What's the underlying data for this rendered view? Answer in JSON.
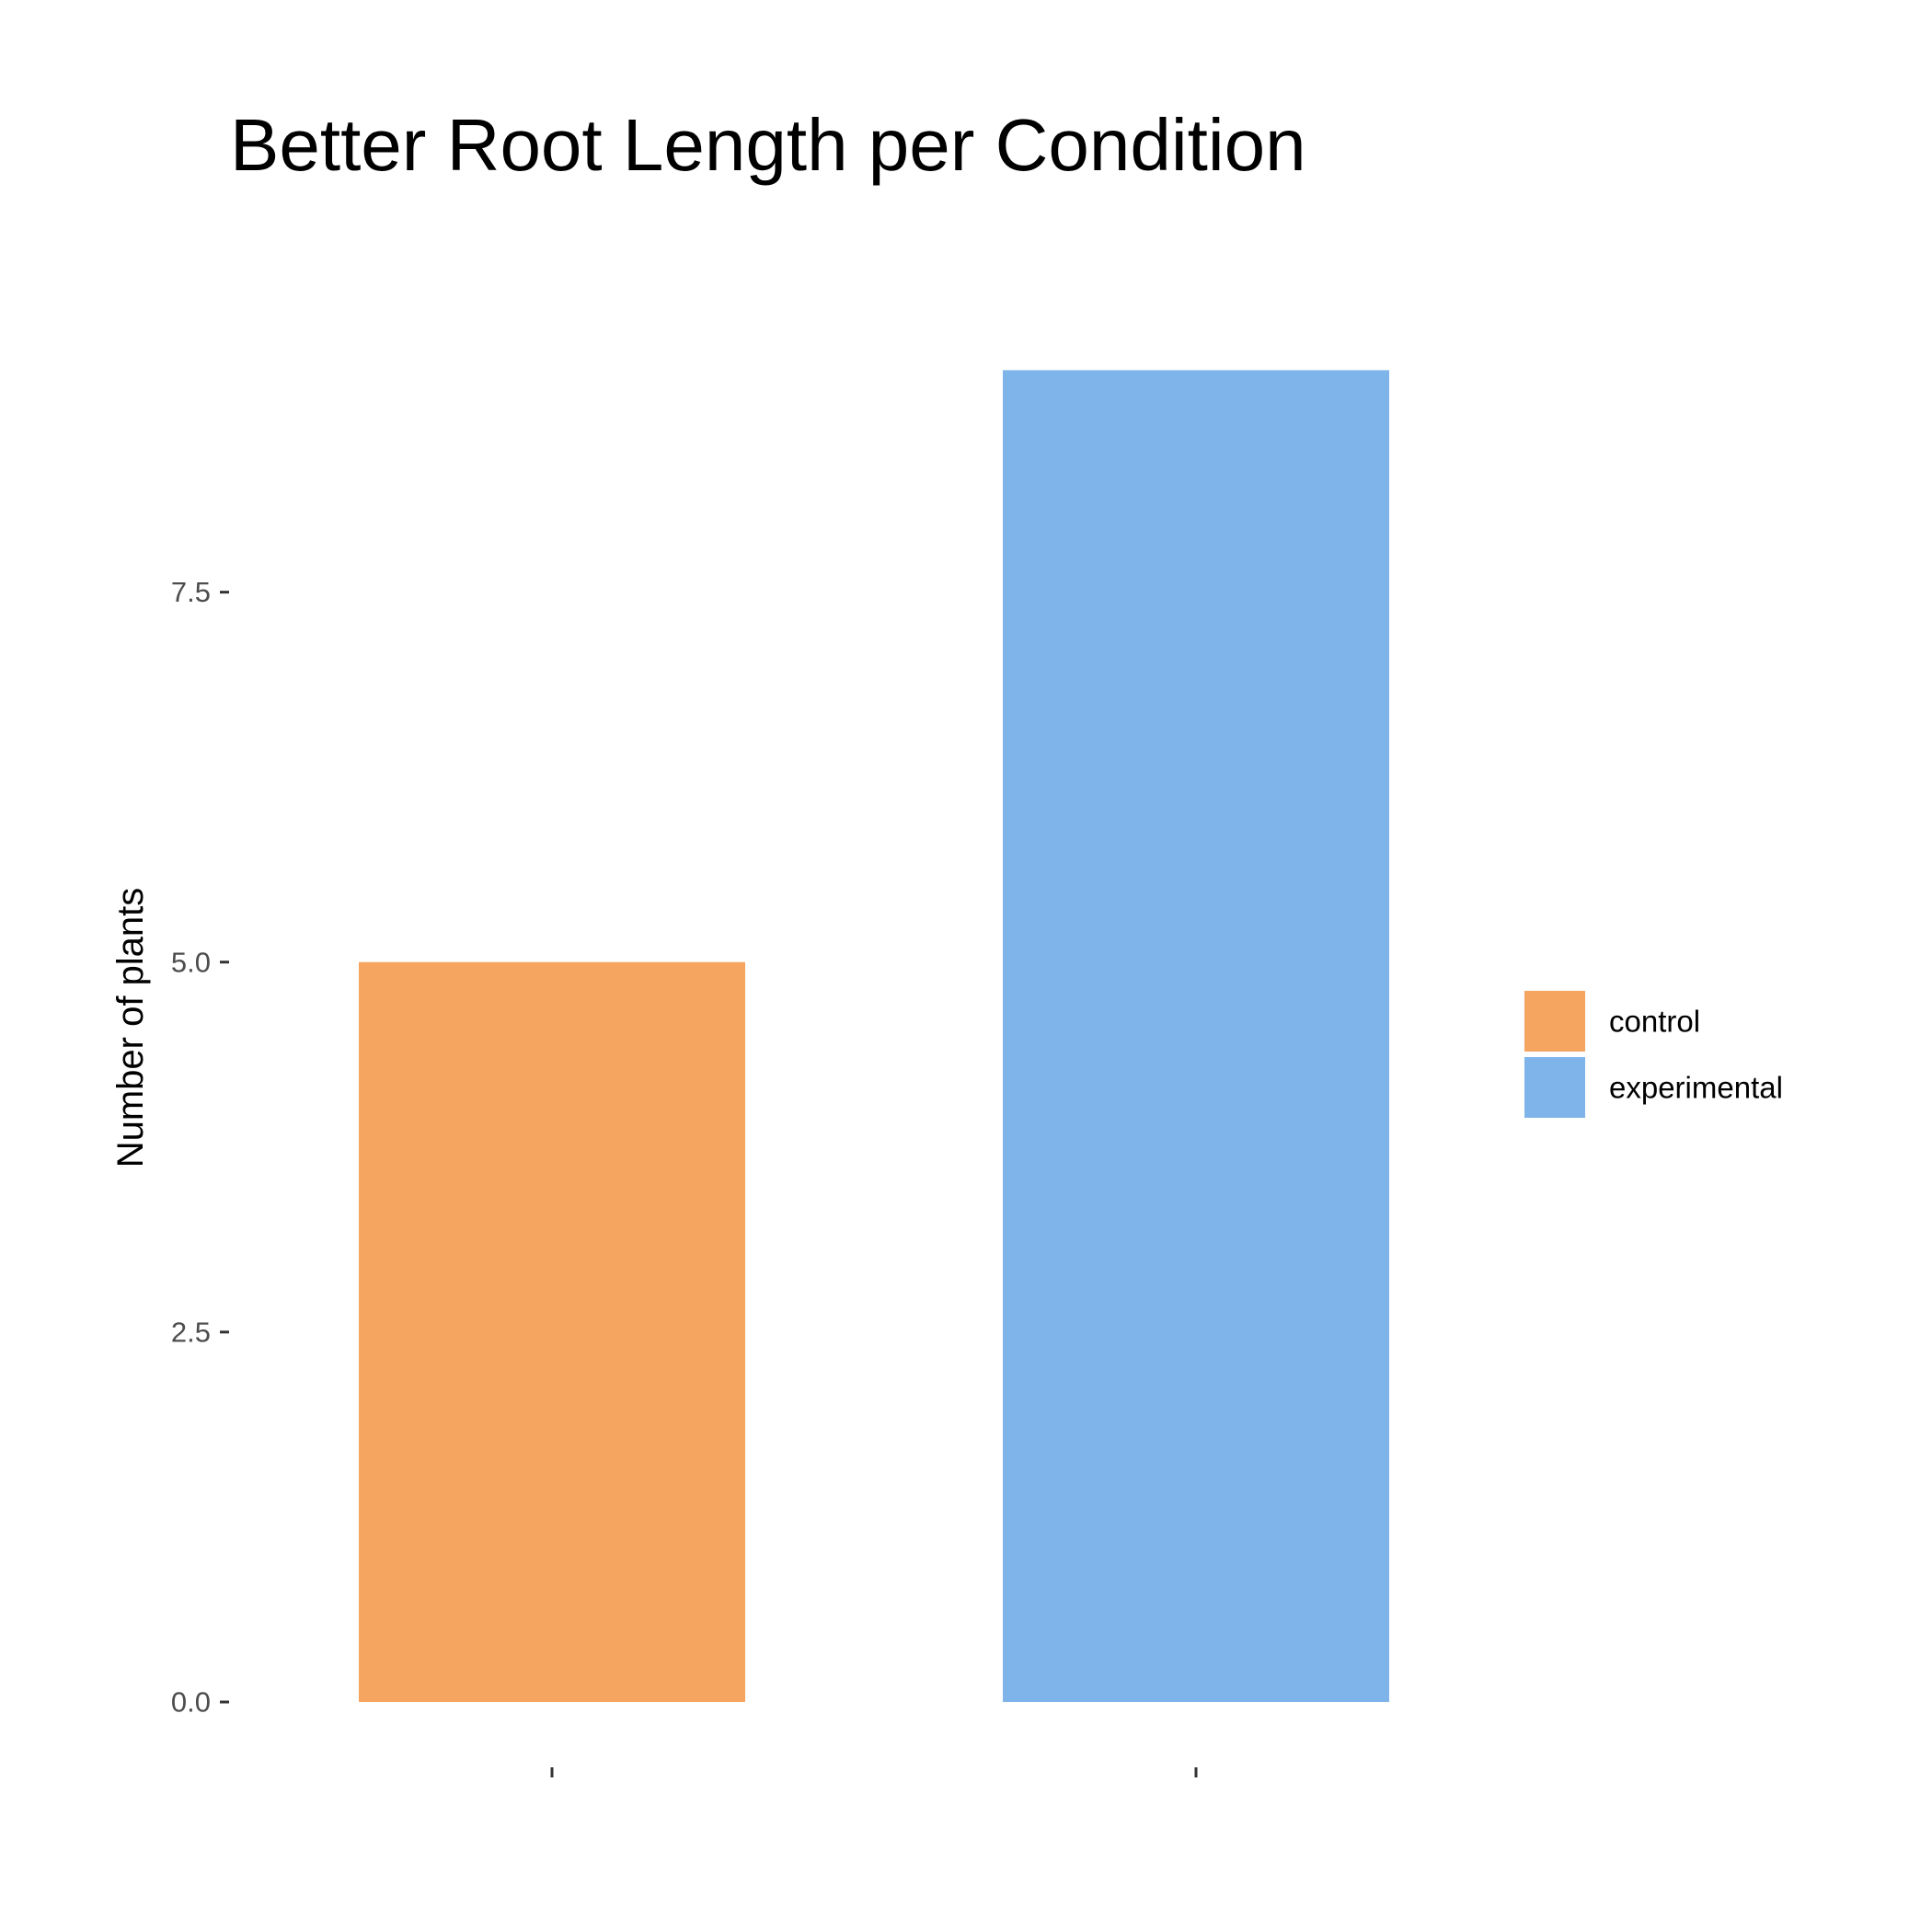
{
  "chart_data": {
    "type": "bar",
    "title": "Better Root Length per Condition",
    "xlabel": "",
    "ylabel": "Number of plants",
    "categories": [
      "control",
      "experimental"
    ],
    "values": [
      5,
      9
    ],
    "colors": [
      "#F5A560",
      "#7EB4EA"
    ],
    "ylim": [
      0,
      9.45
    ],
    "yticks": [
      0,
      2.5,
      5,
      7.5
    ],
    "ytick_labels": [
      "0.0",
      "2.5",
      "5.0",
      "7.5"
    ],
    "x_tick_labels_shown": false,
    "grid": false,
    "legend": {
      "position": "right",
      "entries": [
        "control",
        "experimental"
      ]
    }
  }
}
